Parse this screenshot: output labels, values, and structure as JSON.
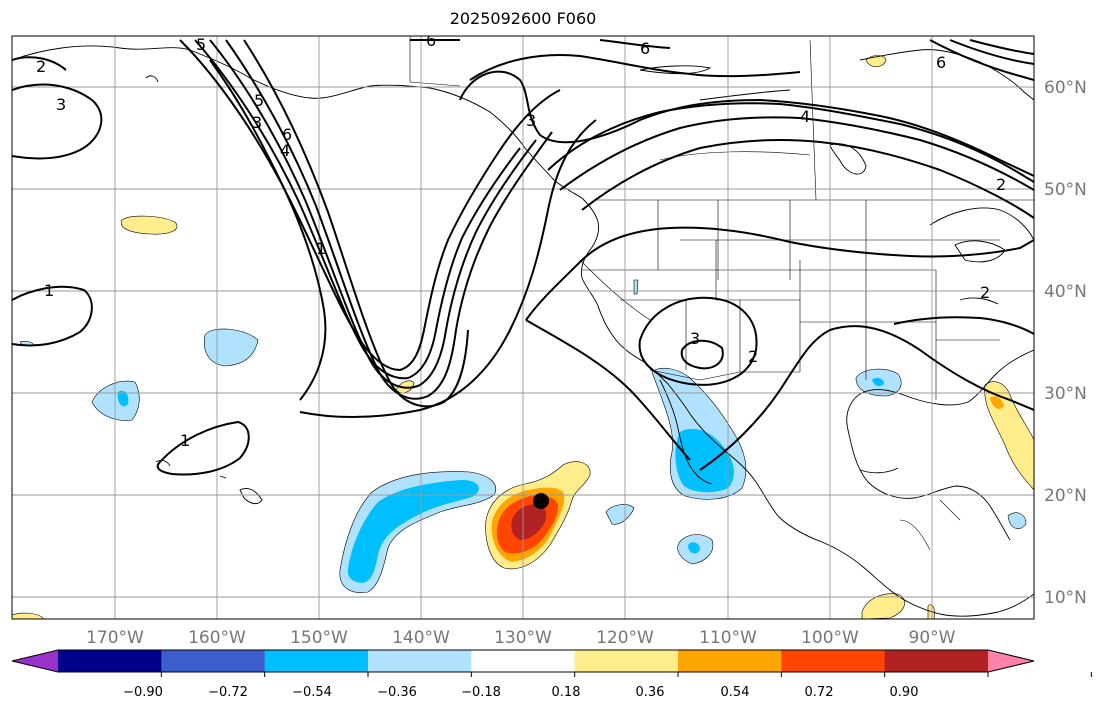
{
  "title": "2025092600 F060",
  "colors": {
    "ocean": "#ffffff",
    "land_line": "#000000",
    "grid": "#999999",
    "contour": "#000000",
    "marker": "#000000"
  },
  "longitude_labels": [
    "170°W",
    "160°W",
    "150°W",
    "140°W",
    "130°W",
    "120°W",
    "110°W",
    "100°W",
    "90°W"
  ],
  "latitude_labels": [
    "60°N",
    "50°N",
    "40°N",
    "30°N",
    "20°N",
    "10°N"
  ],
  "colorbar": {
    "colors": [
      "#9932cc",
      "#00008b",
      "#3a5fcd",
      "#00bfff",
      "#b0e2ff",
      "#ffffff",
      "#ffec8b",
      "#ffa500",
      "#ff4500",
      "#b22222",
      "#ff82ab"
    ],
    "tick_labels": [
      "−0.90",
      "−0.72",
      "−0.54",
      "−0.36",
      "−0.18",
      "0.18",
      "0.36",
      "0.54",
      "0.72",
      "0.90"
    ]
  },
  "contour_labels": [
    "1",
    "1",
    "1",
    "2",
    "2",
    "2",
    "2",
    "3",
    "3",
    "3",
    "3",
    "6",
    "6",
    "6",
    "6",
    "5",
    "5",
    "4",
    "4"
  ],
  "marker_name": "storm-center-marker"
}
